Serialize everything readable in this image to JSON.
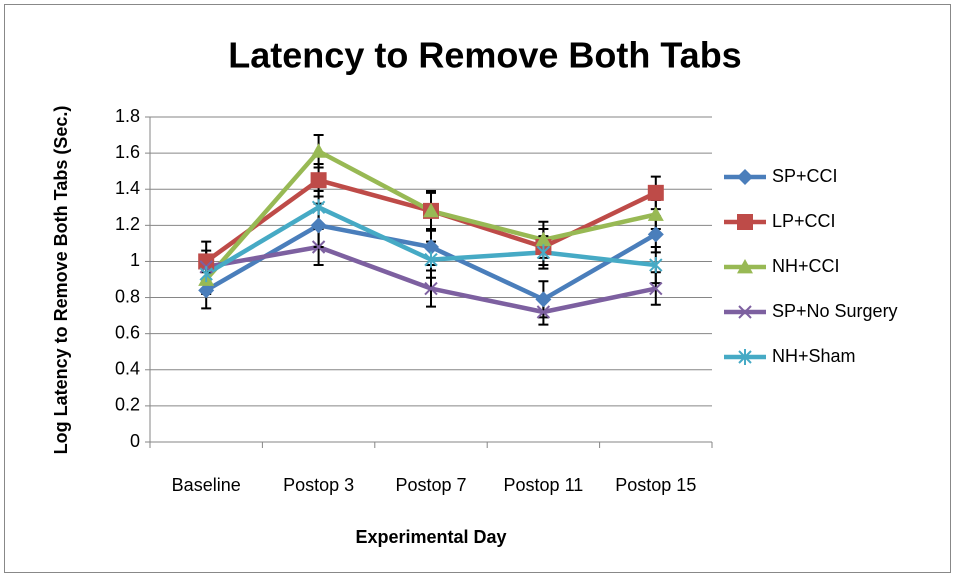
{
  "chart_data": {
    "type": "line",
    "title": "Latency to Remove Both Tabs",
    "x_label": "Experimental Day",
    "y_label": "Log Latency to Remove Both Tabs (Sec.)",
    "categories": [
      "Baseline",
      "Postop 3",
      "Postop 7",
      "Postop 11",
      "Postop 15"
    ],
    "ylim": [
      0,
      1.8
    ],
    "yticks": [
      0,
      0.2,
      0.4,
      0.6,
      0.8,
      1,
      1.2,
      1.4,
      1.6,
      1.8
    ],
    "grid": true,
    "legend": "right",
    "series": [
      {
        "name": "SP+CCI",
        "color": "#4a7ebb",
        "marker": "diamond",
        "values": [
          0.84,
          1.2,
          1.08,
          0.79,
          1.15
        ],
        "errors": [
          0.1,
          0.12,
          0.1,
          0.1,
          0.1
        ]
      },
      {
        "name": "LP+CCI",
        "color": "#be4b48",
        "marker": "square",
        "values": [
          1.0,
          1.45,
          1.28,
          1.08,
          1.38
        ],
        "errors": [
          0.11,
          0.09,
          0.11,
          0.1,
          0.09
        ]
      },
      {
        "name": "NH+CCI",
        "color": "#98b954",
        "marker": "triangle",
        "values": [
          0.9,
          1.61,
          1.28,
          1.12,
          1.26
        ],
        "errors": [
          0.08,
          0.09,
          0.1,
          0.1,
          0.08
        ]
      },
      {
        "name": "SP+No Surgery",
        "color": "#7d60a0",
        "marker": "x",
        "values": [
          0.97,
          1.08,
          0.85,
          0.72,
          0.85
        ],
        "errors": [
          0.09,
          0.1,
          0.1,
          0.07,
          0.09
        ]
      },
      {
        "name": "NH+Sham",
        "color": "#46aac5",
        "marker": "star",
        "values": [
          0.93,
          1.3,
          1.01,
          1.05,
          0.98
        ],
        "errors": [
          0.08,
          0.09,
          0.1,
          0.09,
          0.1
        ]
      }
    ]
  }
}
